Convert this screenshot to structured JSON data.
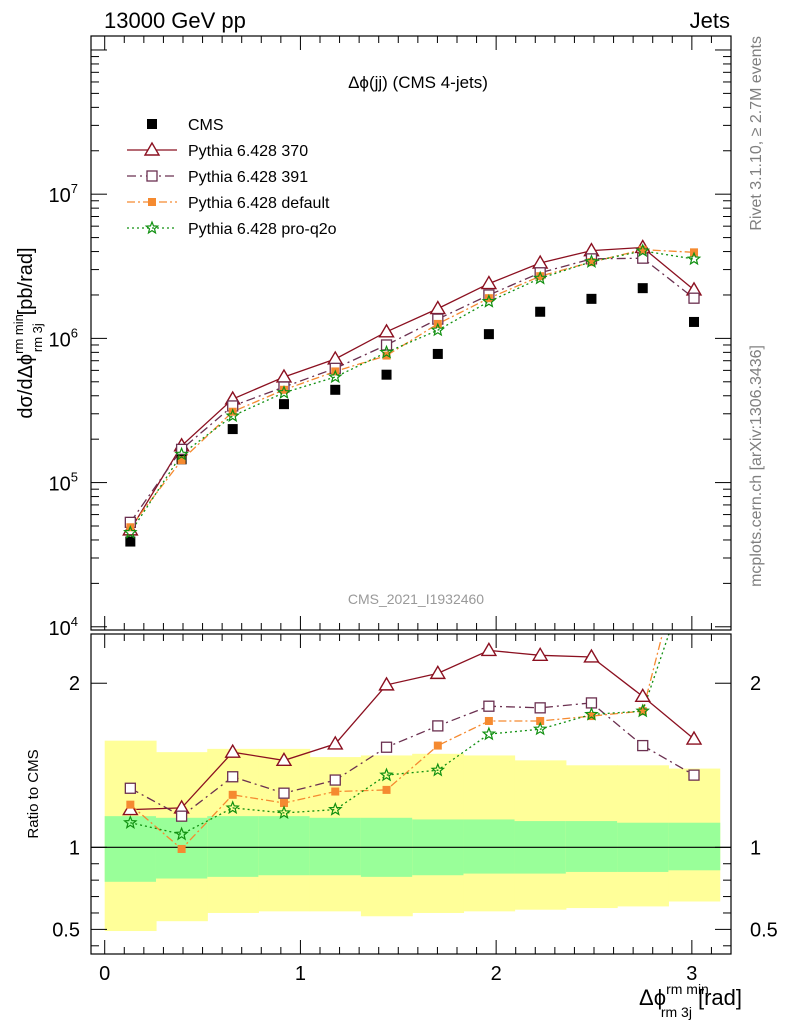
{
  "header": {
    "left": "13000 GeV pp",
    "right": "Jets"
  },
  "side_text": {
    "rivet": "Rivet 3.1.10, ≥ 2.7M events",
    "mcplots": "mcplots.cern.ch [arXiv:1306.3436]"
  },
  "watermark": "CMS_2021_I1932460",
  "colors": {
    "cms": "#000000",
    "p370": "#8b1020",
    "p391": "#6b3050",
    "pdefault": "#f58a30",
    "pq2o": "#109010",
    "band_outer": "#ffff99",
    "band_inner": "#99ff99"
  },
  "chart_data": [
    {
      "type": "scatter",
      "title": "Δϕ(jj) (CMS 4-jets)",
      "ylabel_main": "dσ/dΔϕ",
      "ylabel_sup": "rm min",
      "ylabel_sub": "rm 3j",
      "ylabel_unit": "[pb/rad]",
      "yscale": "log",
      "ylim": [
        9500,
        125000000.0
      ],
      "xlim": [
        -0.07,
        3.2
      ],
      "yticks": [
        {
          "value": 10000,
          "base": "10",
          "exp": "4"
        },
        {
          "value": 100000,
          "base": "10",
          "exp": "5"
        },
        {
          "value": 1000000,
          "base": "10",
          "exp": "6"
        },
        {
          "value": 10000000,
          "base": "10",
          "exp": "7"
        }
      ],
      "legend_position": "top-left",
      "x": [
        0.131,
        0.393,
        0.654,
        0.916,
        1.178,
        1.44,
        1.702,
        1.963,
        2.225,
        2.487,
        2.749,
        3.011
      ],
      "series": [
        {
          "name": "CMS",
          "values": [
            39000,
            145000,
            235000,
            350000,
            440000,
            560000,
            780000,
            1070000,
            1530000,
            1880000,
            2230000,
            1300000
          ]
        },
        {
          "name": "Pythia 6.428 370",
          "values": [
            47000,
            180000,
            380000,
            540000,
            720000,
            1110000,
            1610000,
            2400000,
            3330000,
            4060000,
            4270000,
            2170000
          ]
        },
        {
          "name": "Pythia 6.428 391",
          "values": [
            53000,
            170000,
            340000,
            460000,
            620000,
            900000,
            1360000,
            2000000,
            2850000,
            3560000,
            3600000,
            1900000
          ]
        },
        {
          "name": "Pythia 6.428 default",
          "values": [
            49000,
            143000,
            310000,
            440000,
            590000,
            760000,
            1260000,
            1900000,
            2700000,
            3380000,
            4120000,
            3950000
          ]
        },
        {
          "name": "Pythia 6.428 pro-q2o",
          "values": [
            45000,
            157000,
            290000,
            420000,
            540000,
            800000,
            1140000,
            1800000,
            2610000,
            3400000,
            4040000,
            3550000
          ]
        }
      ]
    },
    {
      "type": "line",
      "ylabel": "Ratio to CMS",
      "xlabel_main": "Δϕ",
      "xlabel_sup": "rm min",
      "xlabel_sub": "rm 3j",
      "xlabel_unit": "[rad]",
      "ylim": [
        0.35,
        2.3
      ],
      "xlim": [
        -0.07,
        3.2
      ],
      "xticks": [
        0,
        1,
        2,
        3
      ],
      "yticks": [
        0.5,
        1,
        2
      ],
      "reference_line": 1,
      "x_edges": [
        0,
        0.262,
        0.524,
        0.785,
        1.047,
        1.309,
        1.571,
        1.833,
        2.094,
        2.356,
        2.618,
        2.88,
        3.142
      ],
      "band_outer": {
        "low": [
          0.49,
          0.55,
          0.6,
          0.61,
          0.61,
          0.58,
          0.6,
          0.61,
          0.62,
          0.63,
          0.64,
          0.67
        ],
        "high": [
          1.65,
          1.58,
          1.6,
          1.6,
          1.55,
          1.56,
          1.57,
          1.56,
          1.53,
          1.5,
          1.5,
          1.48
        ]
      },
      "band_inner": {
        "low": [
          0.79,
          0.81,
          0.82,
          0.83,
          0.83,
          0.82,
          0.83,
          0.84,
          0.84,
          0.85,
          0.85,
          0.86
        ]
      },
      "band_inner_high": [
        1.19,
        1.18,
        1.19,
        1.19,
        1.18,
        1.18,
        1.17,
        1.17,
        1.16,
        1.16,
        1.15,
        1.15
      ],
      "x": [
        0.131,
        0.393,
        0.654,
        0.916,
        1.178,
        1.44,
        1.702,
        1.963,
        2.225,
        2.487,
        2.749,
        3.011
      ],
      "series": [
        {
          "name": "Pythia 6.428 370",
          "values": [
            1.23,
            1.24,
            1.58,
            1.53,
            1.63,
            1.99,
            2.06,
            2.2,
            2.17,
            2.16,
            1.92,
            1.66
          ]
        },
        {
          "name": "Pythia 6.428 391",
          "values": [
            1.36,
            1.19,
            1.43,
            1.33,
            1.41,
            1.61,
            1.74,
            1.86,
            1.85,
            1.88,
            1.62,
            1.44
          ]
        },
        {
          "name": "Pythia 6.428 default",
          "values": [
            1.26,
            0.99,
            1.32,
            1.27,
            1.34,
            1.35,
            1.62,
            1.77,
            1.77,
            1.8,
            1.83,
            3.05
          ]
        },
        {
          "name": "Pythia 6.428 pro-q2o",
          "values": [
            1.15,
            1.08,
            1.24,
            1.21,
            1.23,
            1.44,
            1.47,
            1.69,
            1.72,
            1.81,
            1.83,
            2.75
          ]
        }
      ]
    }
  ]
}
